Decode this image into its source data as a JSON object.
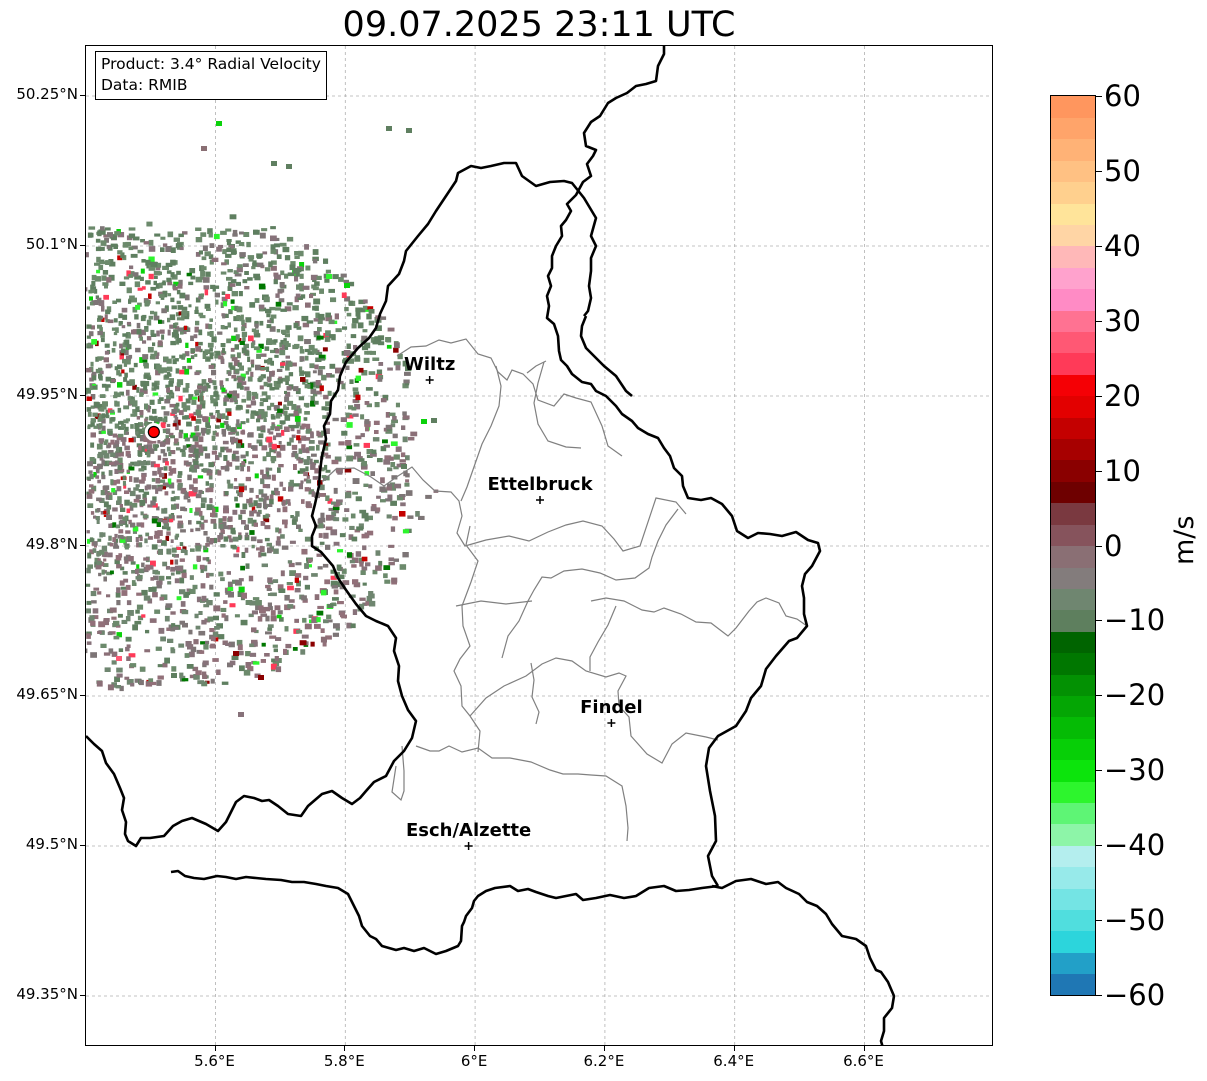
{
  "title": "09.07.2025 23:11 UTC",
  "info": {
    "product": "Product: 3.4° Radial Velocity",
    "data": "Data: RMIB"
  },
  "axes": {
    "y_ticks": [
      "50.25°N",
      "50.1°N",
      "49.95°N",
      "49.8°N",
      "49.65°N",
      "49.5°N",
      "49.35°N"
    ],
    "x_ticks": [
      "5.6°E",
      "5.8°E",
      "6°E",
      "6.2°E",
      "6.4°E",
      "6.6°E"
    ]
  },
  "colorbar": {
    "label": "m/s",
    "ticks": [
      "60",
      "50",
      "40",
      "30",
      "20",
      "10",
      "0",
      "−10",
      "−20",
      "−30",
      "−40",
      "−50",
      "−60"
    ],
    "range": [
      -60,
      60
    ],
    "colors": [
      "#1f77b4",
      "#22a0c8",
      "#2cd5dc",
      "#50dede",
      "#74e4e4",
      "#97eaea",
      "#b4eeee",
      "#8df5a8",
      "#5ef575",
      "#2df52d",
      "#0ce40c",
      "#07cf07",
      "#05bb05",
      "#04a604",
      "#039103",
      "#007700",
      "#006400",
      "#5e7f5e",
      "#6f8670",
      "#837c7c",
      "#8a6f74",
      "#86535c",
      "#7a3940",
      "#6e0000",
      "#8a0000",
      "#a70000",
      "#c40000",
      "#e30000",
      "#f50005",
      "#ff3a58",
      "#ff5874",
      "#ff7292",
      "#ff8bc5",
      "#ffa2cd",
      "#ffb8b8",
      "#ffd5a5",
      "#ffe49a",
      "#ffd08e",
      "#ffc183",
      "#ffb276",
      "#ffa46a",
      "#ff965e"
    ]
  },
  "cities": [
    {
      "name": "Wiltz",
      "lon": 5.93,
      "lat": 49.966
    },
    {
      "name": "Ettelbruck",
      "lon": 6.1,
      "lat": 49.846
    },
    {
      "name": "Findel",
      "lon": 6.21,
      "lat": 49.623
    },
    {
      "name": "Esch/Alzette",
      "lon": 5.99,
      "lat": 49.5
    }
  ],
  "radar": {
    "lon": 5.505,
    "lat": 49.914
  },
  "colors": {
    "border": "#000000",
    "cantons": "#808080",
    "grid": "#b0b0b0",
    "radar_site": "#ff0000"
  }
}
